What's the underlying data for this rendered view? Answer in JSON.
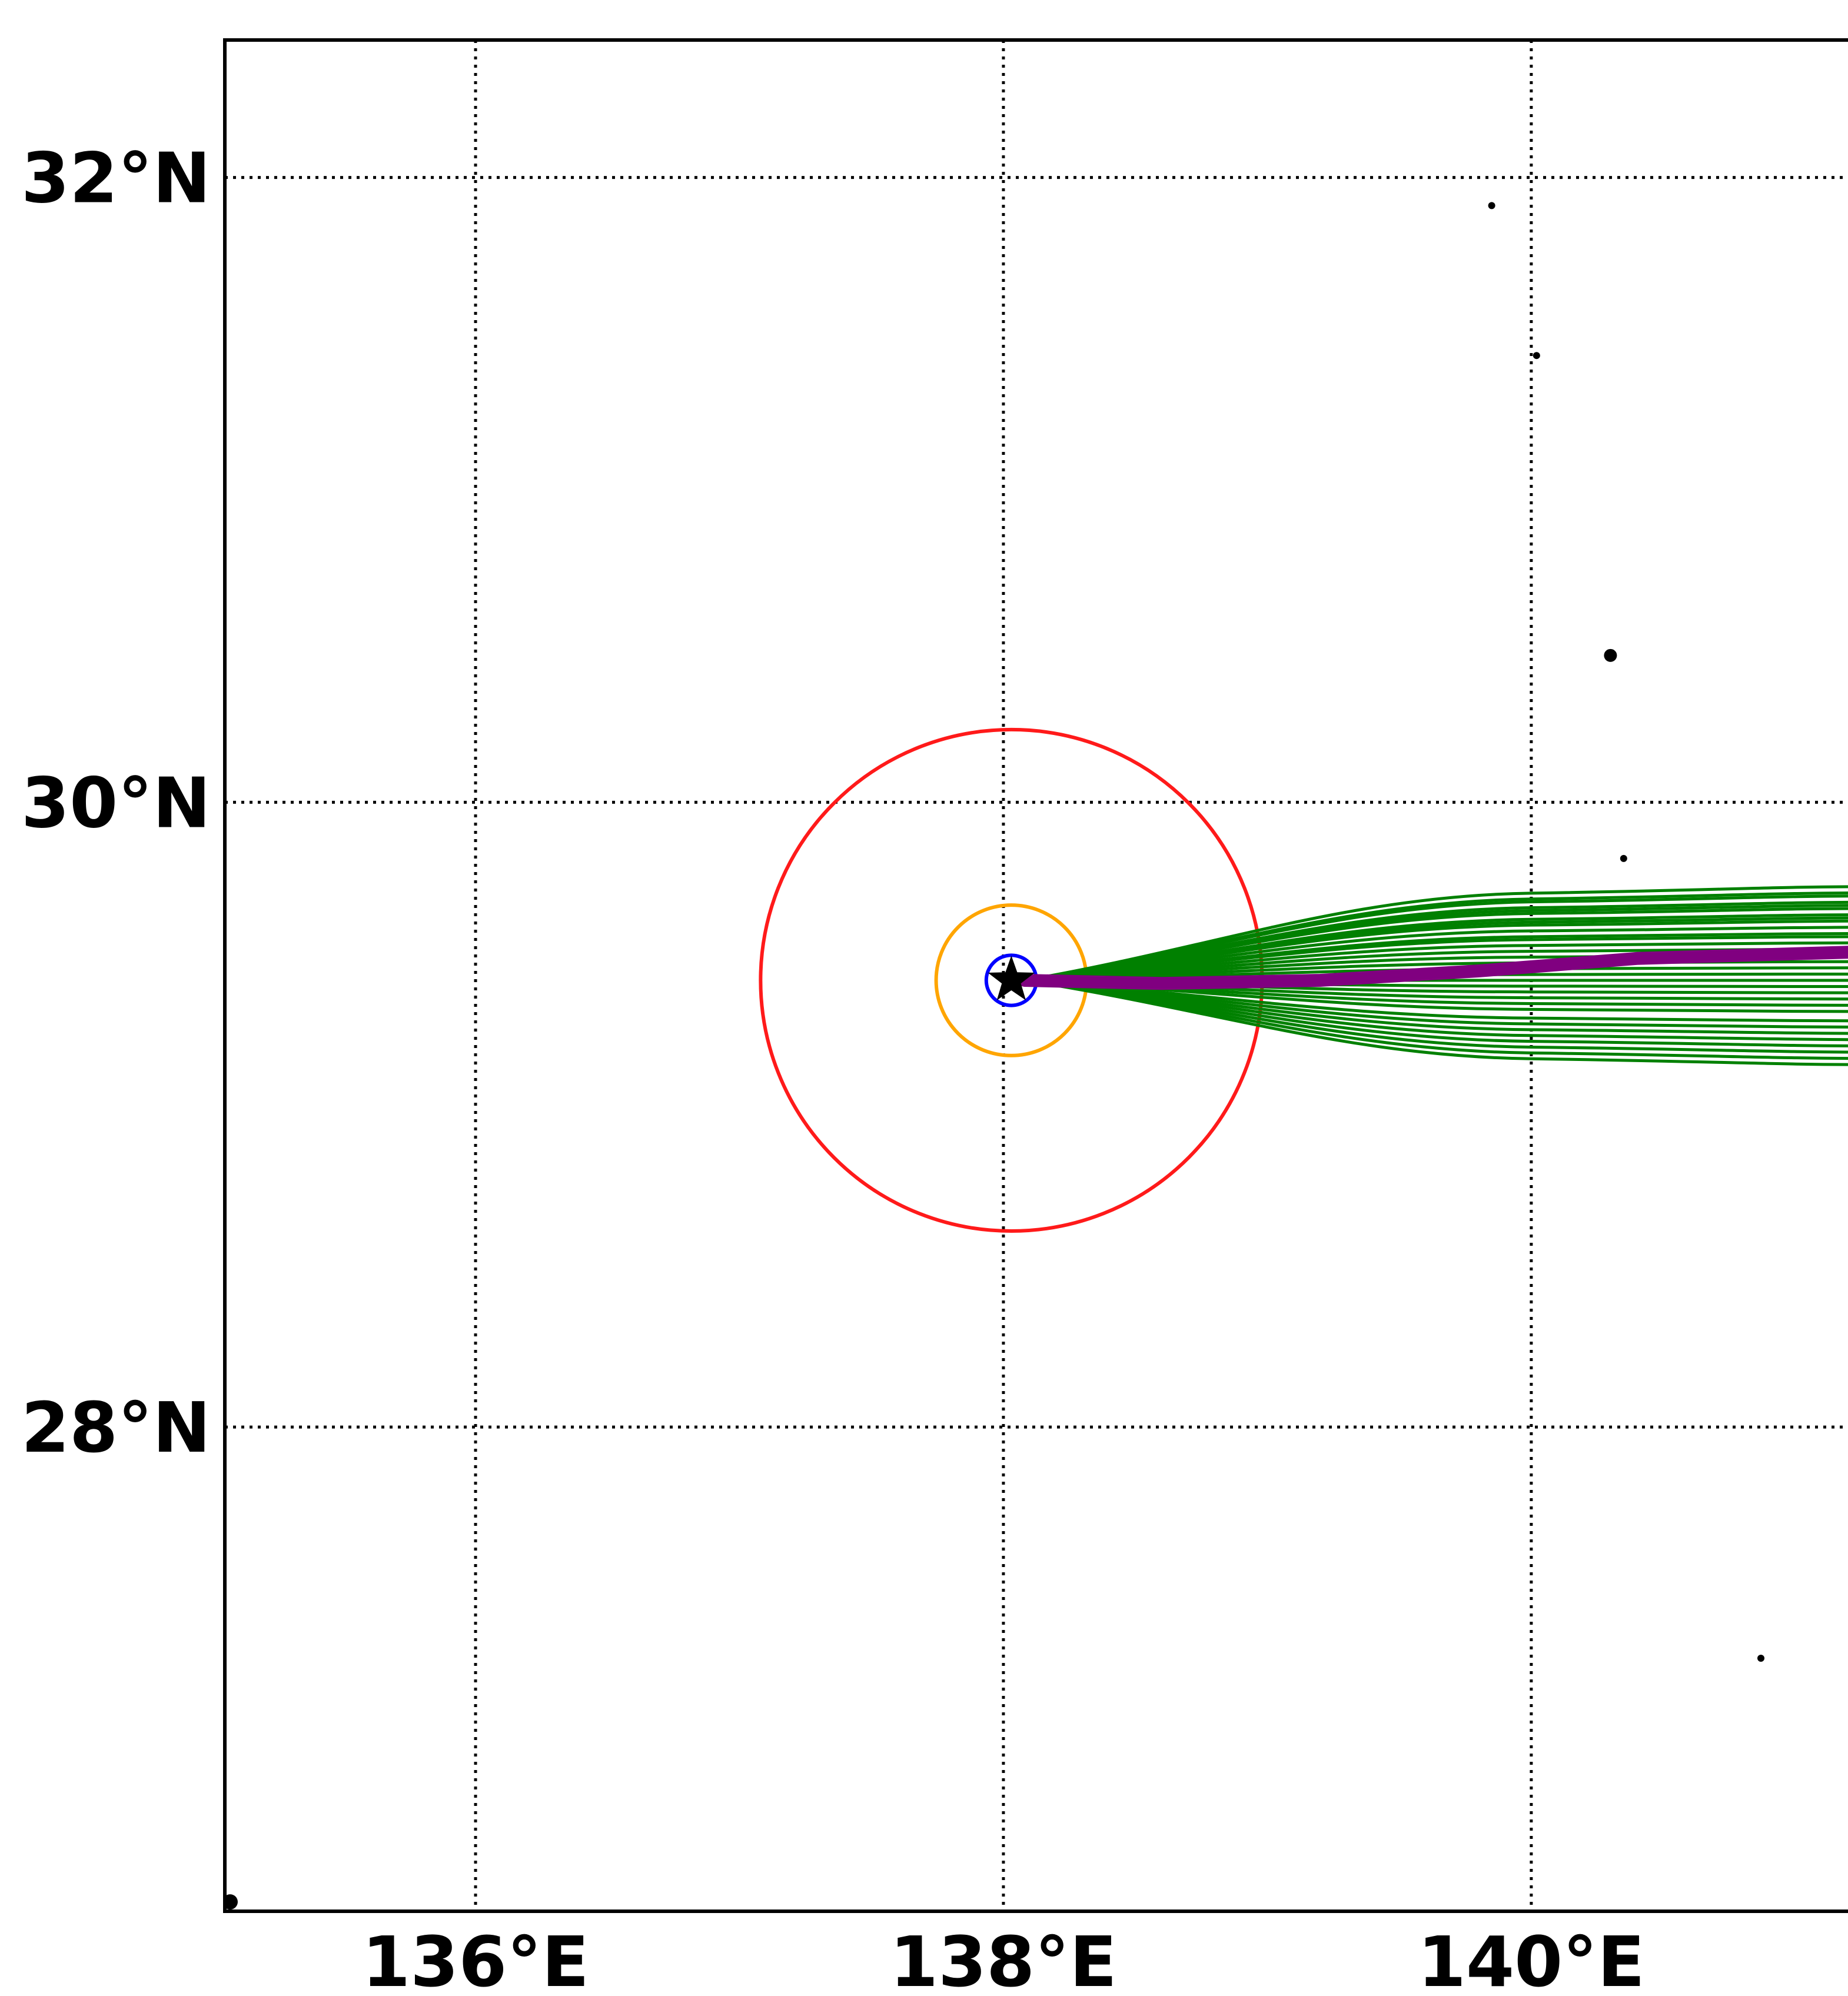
{
  "map": {
    "lon_ticks": [
      {
        "value": 136,
        "label": "136°E"
      },
      {
        "value": 138,
        "label": "138°E"
      },
      {
        "value": 140,
        "label": "140°E"
      }
    ],
    "lat_ticks": [
      {
        "value": 32,
        "label": "32°N"
      },
      {
        "value": 30,
        "label": "30°N"
      },
      {
        "value": 28,
        "label": "28°N"
      }
    ],
    "lon_range": [
      135.05,
      141.2
    ],
    "lat_range": [
      26.45,
      32.44
    ],
    "storm_center": {
      "lon": 138.03,
      "lat": 29.43
    },
    "wind_radii": [
      {
        "color": "#ff1a1a",
        "radius_deg": 0.95
      },
      {
        "color": "#ffa500",
        "radius_deg": 0.285
      },
      {
        "color": "#0000ff",
        "radius_deg": 0.095
      }
    ],
    "ensemble_color": "#008000",
    "mean_track_color": "#800080",
    "mean_track": [
      [
        138.08,
        29.43
      ],
      [
        138.6,
        29.42
      ],
      [
        139.2,
        29.43
      ],
      [
        139.8,
        29.46
      ],
      [
        140.4,
        29.5
      ],
      [
        141.2,
        29.52
      ]
    ],
    "ensemble_end_lats": [
      29.73,
      29.71,
      29.7,
      29.68,
      29.67,
      29.66,
      29.64,
      29.63,
      29.62,
      29.6,
      29.58,
      29.57,
      29.55,
      29.53,
      29.51,
      29.49,
      29.47,
      29.45,
      29.43,
      29.41,
      29.39,
      29.37,
      29.35,
      29.33,
      29.3,
      29.28,
      29.26,
      29.24,
      29.22,
      29.2,
      29.18,
      29.16
    ],
    "islands": [
      {
        "lon": 139.85,
        "lat": 31.91,
        "size": "small"
      },
      {
        "lon": 140.02,
        "lat": 31.43,
        "size": "small"
      },
      {
        "lon": 140.3,
        "lat": 30.47,
        "size": "medium"
      },
      {
        "lon": 140.35,
        "lat": 29.82,
        "size": "small"
      },
      {
        "lon": 140.87,
        "lat": 27.26,
        "size": "small"
      },
      {
        "lon": 135.07,
        "lat": 26.48,
        "size": "coast"
      }
    ],
    "star_color": "#000000"
  }
}
